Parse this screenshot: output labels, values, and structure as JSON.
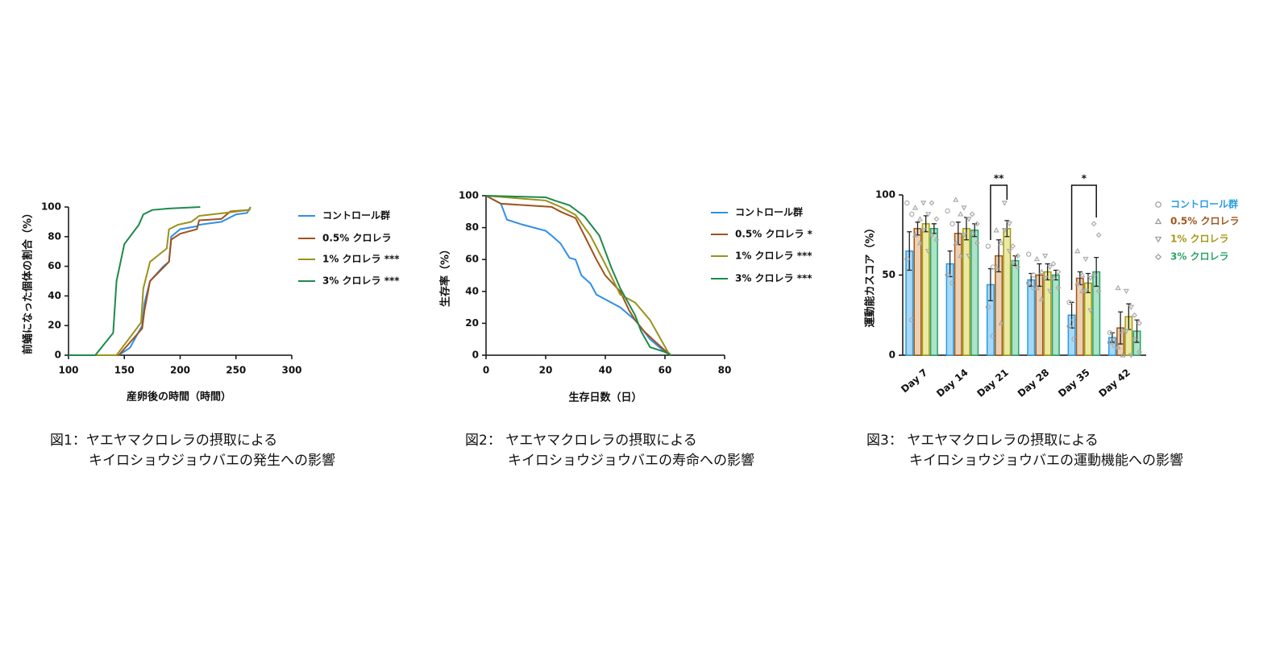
{
  "chart_data": [
    {
      "type": "line",
      "ylabel": "前蛹になった個体の割合（%）",
      "xlabel": "産卵後の時間（時間）",
      "xlim": [
        100,
        300
      ],
      "xticks": [
        100,
        150,
        200,
        250,
        300
      ],
      "ylim": [
        0,
        100
      ],
      "yticks": [
        0,
        20,
        40,
        60,
        80,
        100
      ],
      "series": [
        {
          "name": "コントロール群",
          "color": "#2f8fe8",
          "x": [
            100,
            145,
            155,
            166,
            168,
            173,
            185,
            190,
            192,
            200,
            215,
            217,
            237,
            250,
            260,
            263
          ],
          "values": [
            0,
            0,
            5,
            20,
            35,
            50,
            60,
            63,
            80,
            85,
            87,
            88,
            90,
            95,
            96,
            100
          ]
        },
        {
          "name": "0.5% クロレラ",
          "color": "#a0521c",
          "x": [
            100,
            145,
            166,
            168,
            173,
            190,
            192,
            200,
            215,
            217,
            237,
            245,
            262,
            263
          ],
          "values": [
            0,
            0,
            18,
            30,
            50,
            63,
            78,
            82,
            85,
            91,
            92,
            97,
            98,
            100
          ]
        },
        {
          "name": "1% クロレラ ***",
          "color": "#9a921c",
          "x": [
            100,
            143,
            148,
            165,
            167,
            173,
            188,
            190,
            198,
            210,
            217,
            240,
            262,
            263
          ],
          "values": [
            0,
            0,
            5,
            22,
            45,
            63,
            72,
            85,
            88,
            90,
            94,
            96,
            98,
            100
          ]
        },
        {
          "name": "3% クロレラ ***",
          "color": "#1e8a4a",
          "x": [
            100,
            124,
            140,
            143,
            150,
            163,
            167,
            175,
            190,
            218
          ],
          "values": [
            0,
            0,
            15,
            50,
            75,
            88,
            95,
            98,
            99,
            100
          ]
        }
      ],
      "caption": [
        "図1：ヤエヤマクロレラの摂取による",
        "キイロショウジョウバエの発生への影響"
      ]
    },
    {
      "type": "line",
      "ylabel": "生存率（%）",
      "xlabel": "生存日数（日）",
      "xlim": [
        0,
        80
      ],
      "xticks": [
        0,
        20,
        40,
        60,
        80
      ],
      "ylim": [
        0,
        100
      ],
      "yticks": [
        0,
        20,
        40,
        60,
        80,
        100
      ],
      "series": [
        {
          "name": "コントロール群",
          "color": "#2f8fe8",
          "x": [
            0,
            5,
            7,
            12,
            20,
            22,
            25,
            28,
            30,
            32,
            35,
            37,
            45,
            50,
            55,
            60,
            62
          ],
          "values": [
            100,
            95,
            85,
            82,
            78,
            75,
            70,
            61,
            60,
            50,
            45,
            38,
            30,
            22,
            10,
            2,
            0
          ]
        },
        {
          "name": "0.5% クロレラ *",
          "color": "#a0521c",
          "x": [
            0,
            5,
            22,
            25,
            30,
            33,
            37,
            40,
            45,
            48,
            50,
            53,
            57,
            60,
            62
          ],
          "values": [
            100,
            95,
            93,
            90,
            86,
            75,
            60,
            50,
            40,
            28,
            22,
            15,
            8,
            3,
            0
          ]
        },
        {
          "name": "1% クロレラ ***",
          "color": "#9a921c",
          "x": [
            0,
            20,
            25,
            30,
            35,
            40,
            45,
            50,
            55,
            58,
            61,
            62
          ],
          "values": [
            100,
            97,
            93,
            88,
            75,
            57,
            38,
            33,
            22,
            12,
            2,
            0
          ]
        },
        {
          "name": "3% クロレラ ***",
          "color": "#1e8a4a",
          "x": [
            0,
            20,
            23,
            28,
            33,
            38,
            42,
            45,
            50,
            52,
            55,
            60,
            62
          ],
          "values": [
            100,
            99,
            97,
            94,
            87,
            75,
            55,
            42,
            25,
            15,
            5,
            2,
            0
          ]
        }
      ],
      "caption": [
        "図2： ヤエヤマクロレラの摂取による",
        "キイロショウジョウバエの寿命への影響"
      ]
    },
    {
      "type": "bar",
      "ylabel": "運動能カスコア（%）",
      "categories": [
        "Day 7",
        "Day 14",
        "Day 21",
        "Day 28",
        "Day 35",
        "Day 42"
      ],
      "ylim": [
        0,
        100
      ],
      "yticks": [
        0,
        50,
        100
      ],
      "series": [
        {
          "name": "コントロール群",
          "color": "#2a9de0",
          "fill": "#a6d8f7",
          "marker": "circle",
          "values": [
            65,
            57,
            44,
            47,
            25,
            11
          ],
          "errors": [
            12,
            8,
            10,
            4,
            8,
            3
          ],
          "points": [
            [
              95,
              88,
              60,
              22
            ],
            [
              90,
              82,
              50,
              45
            ],
            [
              68,
              55,
              30,
              12
            ],
            [
              63,
              50,
              45,
              42
            ],
            [
              33,
              22,
              18,
              10
            ],
            [
              14,
              10,
              8,
              6
            ]
          ]
        },
        {
          "name": "0.5% クロレラ",
          "color": "#a0571c",
          "fill": "#ecd0b2",
          "marker": "triangle-up",
          "values": [
            79,
            76,
            62,
            50,
            48,
            17
          ],
          "errors": [
            4,
            7,
            10,
            7,
            4,
            10
          ],
          "points": [
            [
              92,
              85,
              75,
              70
            ],
            [
              97,
              88,
              70,
              62
            ],
            [
              78,
              70,
              55,
              20
            ],
            [
              60,
              52,
              42,
              35
            ],
            [
              65,
              50,
              45,
              40
            ],
            [
              42,
              15,
              5,
              0
            ]
          ]
        },
        {
          "name": "1% クロレラ",
          "color": "#a39a16",
          "fill": "#eceaa2",
          "marker": "triangle-down",
          "values": [
            82,
            79,
            79,
            52,
            45,
            24
          ],
          "errors": [
            5,
            7,
            5,
            5,
            6,
            8
          ],
          "points": [
            [
              95,
              88,
              78,
              65
            ],
            [
              92,
              85,
              75,
              62
            ],
            [
              95,
              82,
              78,
              65
            ],
            [
              62,
              55,
              48,
              40
            ],
            [
              60,
              48,
              40,
              28
            ],
            [
              40,
              30,
              15,
              0
            ]
          ]
        },
        {
          "name": "3% クロレラ",
          "color": "#2aa36a",
          "fill": "#ade3c8",
          "marker": "diamond",
          "values": [
            79,
            78,
            59,
            50,
            52,
            15
          ],
          "errors": [
            3,
            4,
            3,
            3,
            9,
            7
          ],
          "points": [
            [
              95,
              85,
              75,
              72
            ],
            [
              88,
              82,
              76,
              70
            ],
            [
              68,
              62,
              58,
              55
            ],
            [
              57,
              52,
              48,
              42
            ],
            [
              82,
              75,
              50,
              40
            ],
            [
              25,
              20,
              10,
              2
            ]
          ]
        }
      ],
      "annotations": [
        "**",
        "*"
      ],
      "caption": [
        "図3： ヤエヤマクロレラの摂取による",
        "キイロショウジョウバエの運動機能への影響"
      ]
    }
  ]
}
